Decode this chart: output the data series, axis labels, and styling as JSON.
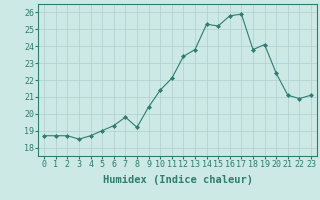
{
  "x": [
    0,
    1,
    2,
    3,
    4,
    5,
    6,
    7,
    8,
    9,
    10,
    11,
    12,
    13,
    14,
    15,
    16,
    17,
    18,
    19,
    20,
    21,
    22,
    23
  ],
  "y": [
    18.7,
    18.7,
    18.7,
    18.5,
    18.7,
    19.0,
    19.3,
    19.8,
    19.2,
    20.4,
    21.4,
    22.1,
    23.4,
    23.8,
    25.3,
    25.2,
    25.8,
    25.9,
    23.8,
    24.1,
    22.4,
    21.1,
    20.9,
    21.1
  ],
  "line_color": "#2e7d6e",
  "marker": "D",
  "marker_size": 2.0,
  "bg_color": "#cce9e6",
  "grid_color": "#b0cece",
  "xlabel": "Humidex (Indice chaleur)",
  "xlim": [
    -0.5,
    23.5
  ],
  "ylim": [
    17.5,
    26.5
  ],
  "yticks": [
    18,
    19,
    20,
    21,
    22,
    23,
    24,
    25,
    26
  ],
  "xticks": [
    0,
    1,
    2,
    3,
    4,
    5,
    6,
    7,
    8,
    9,
    10,
    11,
    12,
    13,
    14,
    15,
    16,
    17,
    18,
    19,
    20,
    21,
    22,
    23
  ],
  "xlabel_fontsize": 7.5,
  "tick_fontsize": 6.0
}
